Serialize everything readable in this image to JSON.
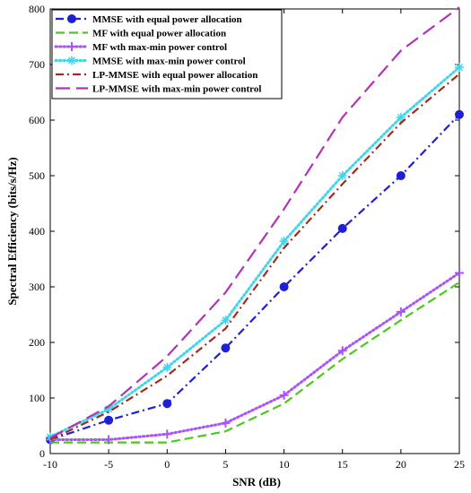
{
  "chart_data": {
    "type": "line",
    "title": "",
    "xlabel": "SNR (dB)",
    "ylabel": "Spectral Efficiency (bits/s/Hz)",
    "xlim": [
      -10,
      25
    ],
    "ylim": [
      0,
      800
    ],
    "xticks": [
      -10,
      -5,
      0,
      5,
      10,
      15,
      20,
      25
    ],
    "yticks": [
      0,
      100,
      200,
      300,
      400,
      500,
      600,
      700,
      800
    ],
    "x": [
      -10,
      -5,
      0,
      5,
      10,
      15,
      20,
      25
    ],
    "grid": false,
    "legend_position": "top-left",
    "series": [
      {
        "name": "MMSE with equal power allocation",
        "values": [
          25,
          60,
          90,
          190,
          300,
          405,
          500,
          610
        ],
        "color": "#1f1fd8",
        "dash": "dashdot",
        "marker": "circle"
      },
      {
        "name": "MF with equal power allocation",
        "values": [
          20,
          20,
          20,
          40,
          90,
          170,
          240,
          308
        ],
        "color": "#4cc91a",
        "dash": "dashed",
        "marker": "none"
      },
      {
        "name": "MF wth max-min power control",
        "values": [
          25,
          25,
          35,
          55,
          105,
          185,
          255,
          325
        ],
        "color": "#a855f7",
        "dash": "dotted",
        "marker": "plus"
      },
      {
        "name": "MMSE with max-min power control",
        "values": [
          30,
          80,
          155,
          240,
          382,
          500,
          605,
          695
        ],
        "color": "#3fd6ea",
        "dash": "dotted",
        "marker": "star"
      },
      {
        "name": "LP-MMSE with equal power allocation",
        "values": [
          25,
          75,
          140,
          225,
          370,
          485,
          595,
          683
        ],
        "color": "#a52a1a",
        "dash": "dashdot",
        "marker": "none"
      },
      {
        "name": "LP-MMSE with max-min power control",
        "values": [
          28,
          85,
          175,
          290,
          440,
          605,
          725,
          803
        ],
        "color": "#b034b4",
        "dash": "longdash",
        "marker": "none"
      }
    ]
  }
}
